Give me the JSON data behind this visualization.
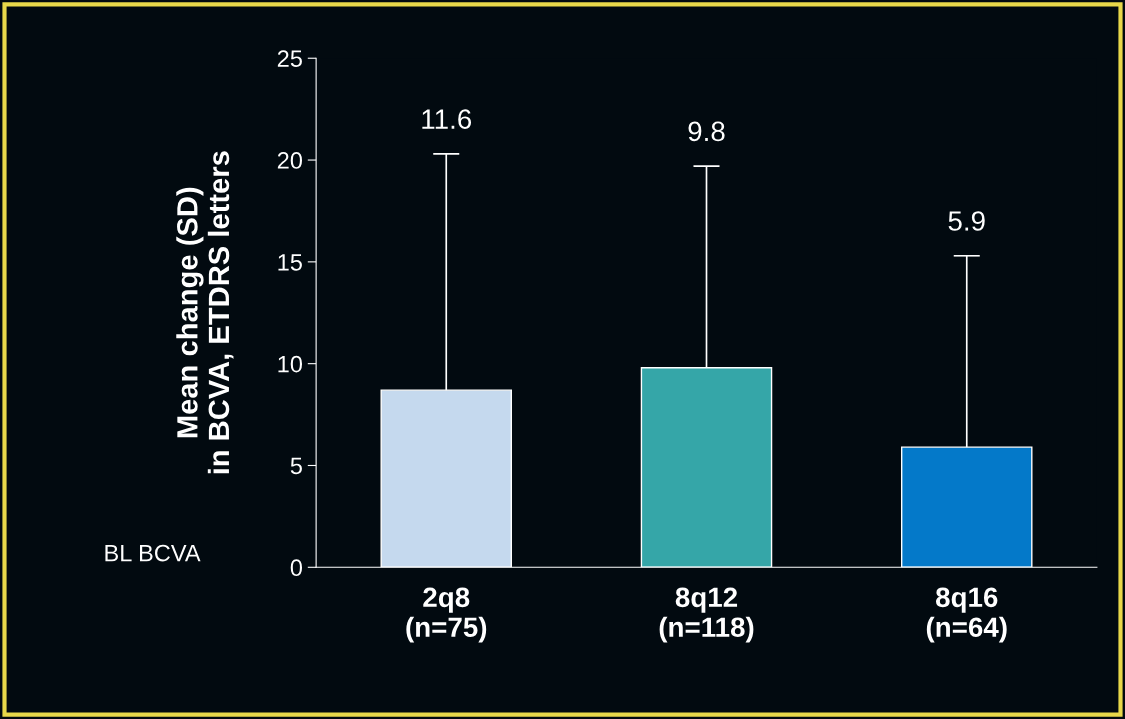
{
  "chart_data": {
    "type": "bar",
    "ylabel": "Mean change (SD)\nin BCVA, ETDRS letters",
    "categories": [
      "2q8\n(n=75)",
      "8q12\n(n=118)",
      "8q16\n(n=64)"
    ],
    "values": [
      8.7,
      9.8,
      5.9
    ],
    "colors": [
      "#c5d9ee",
      "#35a6a8",
      "#0479c9"
    ],
    "errors": [
      [
        8.7,
        20.3
      ],
      [
        9.8,
        19.7
      ],
      [
        5.9,
        15.3
      ]
    ],
    "ylim": [
      0,
      25
    ],
    "yticks": [
      0,
      5,
      10,
      15,
      20,
      25
    ],
    "grid": false,
    "legend": false,
    "annotations": [
      "BL BCVA",
      {
        "text": "11.6",
        "x": "2q8\n(n=75)",
        "y": 20.3
      },
      {
        "text": "9.8",
        "x": "8q12\n(n=118)",
        "y": 19.7
      },
      {
        "text": "5.9",
        "x": "8q16\n(n=64)",
        "y": 15.3
      }
    ]
  }
}
